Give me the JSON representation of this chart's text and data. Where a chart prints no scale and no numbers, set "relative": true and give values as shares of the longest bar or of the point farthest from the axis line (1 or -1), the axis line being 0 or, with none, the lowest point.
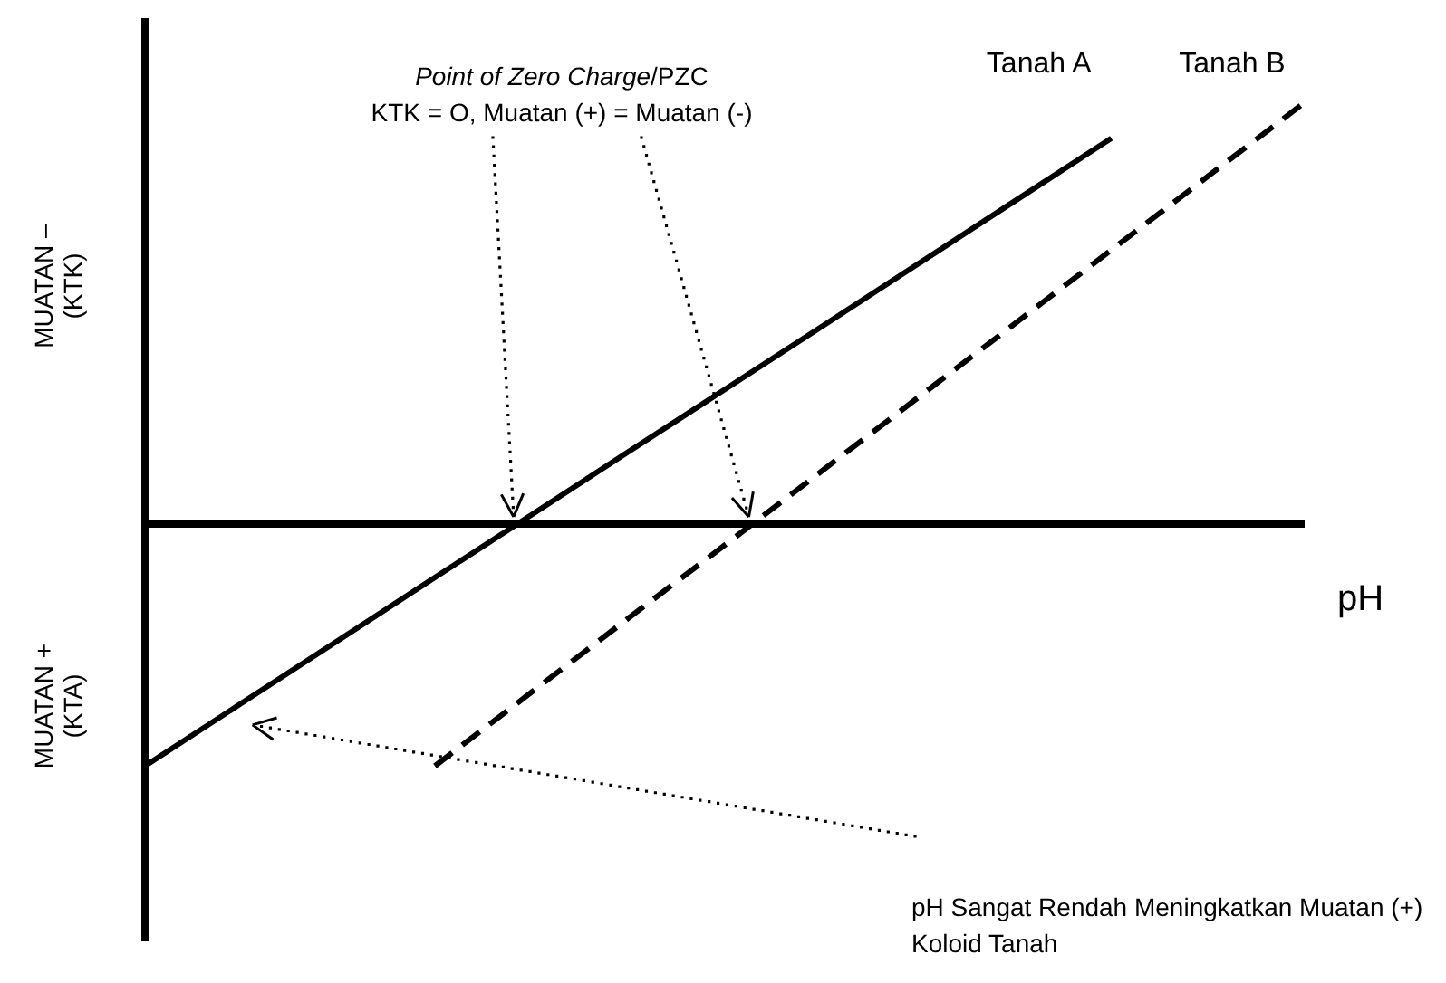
{
  "chart_data": {
    "type": "line",
    "relative": true,
    "categories": [
      null,
      null,
      null,
      null,
      null,
      null,
      null,
      null,
      null,
      null,
      null,
      null,
      null
    ],
    "series": [
      {
        "name": "Tanah A",
        "color": "#000000",
        "line_style": "solid",
        "values": [
          -0.574,
          -0.425,
          -0.276,
          -0.127,
          0.022,
          0.171,
          0.319,
          0.468,
          0.617,
          0.766,
          0.915,
          null,
          null
        ]
      },
      {
        "name": "Tanah B",
        "color": "#000000",
        "line_style": "dashed",
        "values": [
          null,
          null,
          null,
          -0.574,
          -0.399,
          -0.224,
          -0.05,
          0.125,
          0.3,
          0.475,
          0.65,
          0.825,
          1.0
        ]
      }
    ],
    "xlabel": "pH",
    "ylabel": "MUATAN – (KTK)",
    "annotations": [
      "Point of Zero Charge/PZC",
      "KTK = O, Muatan (+) = Muatan (-)",
      "MUATAN + (KTA)",
      "pH Sangat Rendah Meningkatkan Muatan (+) Koloid Tanah"
    ],
    "legend": false,
    "marker": "none"
  }
}
